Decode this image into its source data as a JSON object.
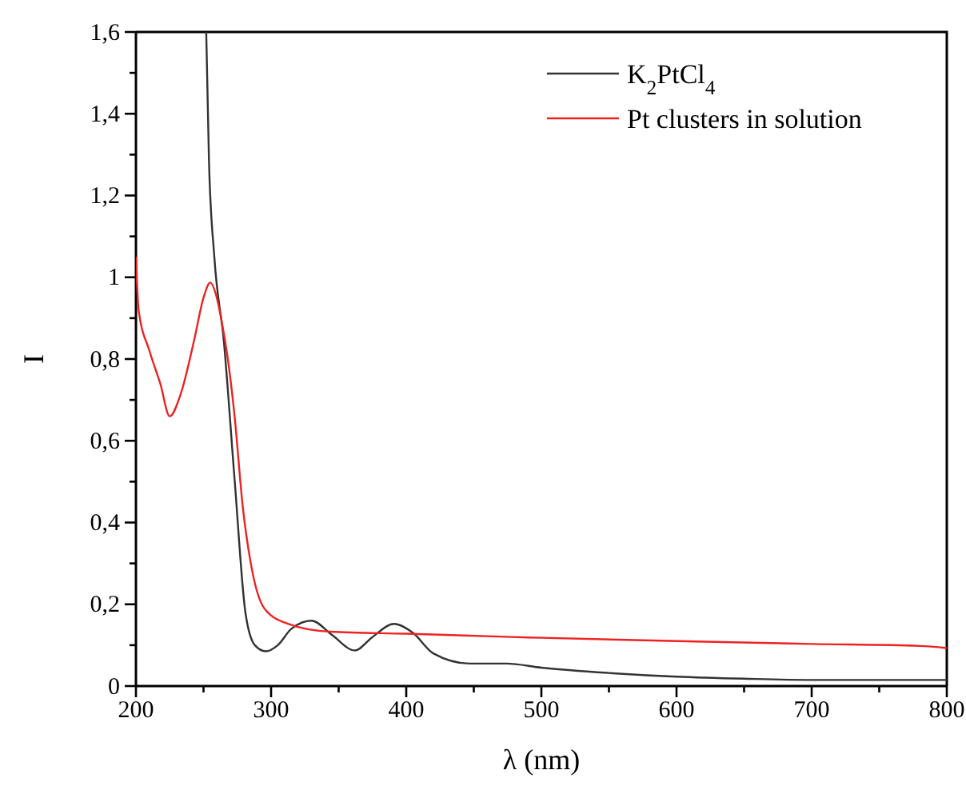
{
  "chart_data": {
    "type": "line",
    "xlabel": "λ (nm)",
    "ylabel": "I",
    "xlim": [
      200,
      800
    ],
    "ylim": [
      0,
      1.6
    ],
    "xticks": [
      200,
      {
        "value": 250,
        "label": null
      },
      300,
      {
        "value": 350,
        "label": null
      },
      400,
      {
        "value": 450,
        "label": null
      },
      500,
      {
        "value": 550,
        "label": null
      },
      600,
      {
        "value": 650,
        "label": null
      },
      700,
      {
        "value": 750,
        "label": null
      },
      800
    ],
    "yticks": [
      0,
      {
        "value": 0.1,
        "label": null
      },
      {
        "value": 0.2,
        "label": "0,2"
      },
      {
        "value": 0.3,
        "label": null
      },
      {
        "value": 0.4,
        "label": "0,4"
      },
      {
        "value": 0.5,
        "label": null
      },
      {
        "value": 0.6,
        "label": "0,6"
      },
      {
        "value": 0.7,
        "label": null
      },
      {
        "value": 0.8,
        "label": "0,8"
      },
      {
        "value": 0.9,
        "label": null
      },
      1,
      {
        "value": 1.1,
        "label": null
      },
      {
        "value": 1.2,
        "label": "1,2"
      },
      {
        "value": 1.3,
        "label": null
      },
      {
        "value": 1.4,
        "label": "1,4"
      },
      {
        "value": 1.5,
        "label": null
      },
      {
        "value": 1.6,
        "label": "1,6"
      }
    ],
    "grid": false,
    "legend": "top right",
    "line_style": "solid",
    "marker": "none",
    "series": [
      {
        "name": "K$_{2}$PtCl$_{4}$",
        "color": "#333333",
        "x": [
          252,
          254,
          258,
          265,
          273,
          281,
          288,
          296,
          305,
          315,
          330,
          345,
          362,
          375,
          391,
          405,
          420,
          447,
          474,
          500,
          550,
          600,
          650,
          700,
          750,
          800
        ],
        "values": [
          1.6,
          1.29,
          1.05,
          0.845,
          0.505,
          0.18,
          0.1,
          0.085,
          0.1,
          0.14,
          0.16,
          0.125,
          0.087,
          0.12,
          0.152,
          0.13,
          0.08,
          0.055,
          0.055,
          0.045,
          0.032,
          0.023,
          0.018,
          0.015,
          0.015,
          0.015
        ]
      },
      {
        "name": "Pt clusters in solution",
        "color": "#ee2222",
        "x": [
          200,
          202,
          210,
          218,
          225,
          233,
          243,
          250,
          255,
          259,
          263,
          268,
          273,
          279,
          285,
          295,
          312,
          344,
          400,
          478,
          500,
          600,
          700,
          780,
          800
        ],
        "values": [
          1.05,
          0.92,
          0.82,
          0.74,
          0.66,
          0.713,
          0.845,
          0.95,
          0.987,
          0.96,
          0.9,
          0.8,
          0.66,
          0.44,
          0.3,
          0.19,
          0.153,
          0.133,
          0.128,
          0.12,
          0.118,
          0.11,
          0.103,
          0.098,
          0.093
        ]
      }
    ]
  }
}
